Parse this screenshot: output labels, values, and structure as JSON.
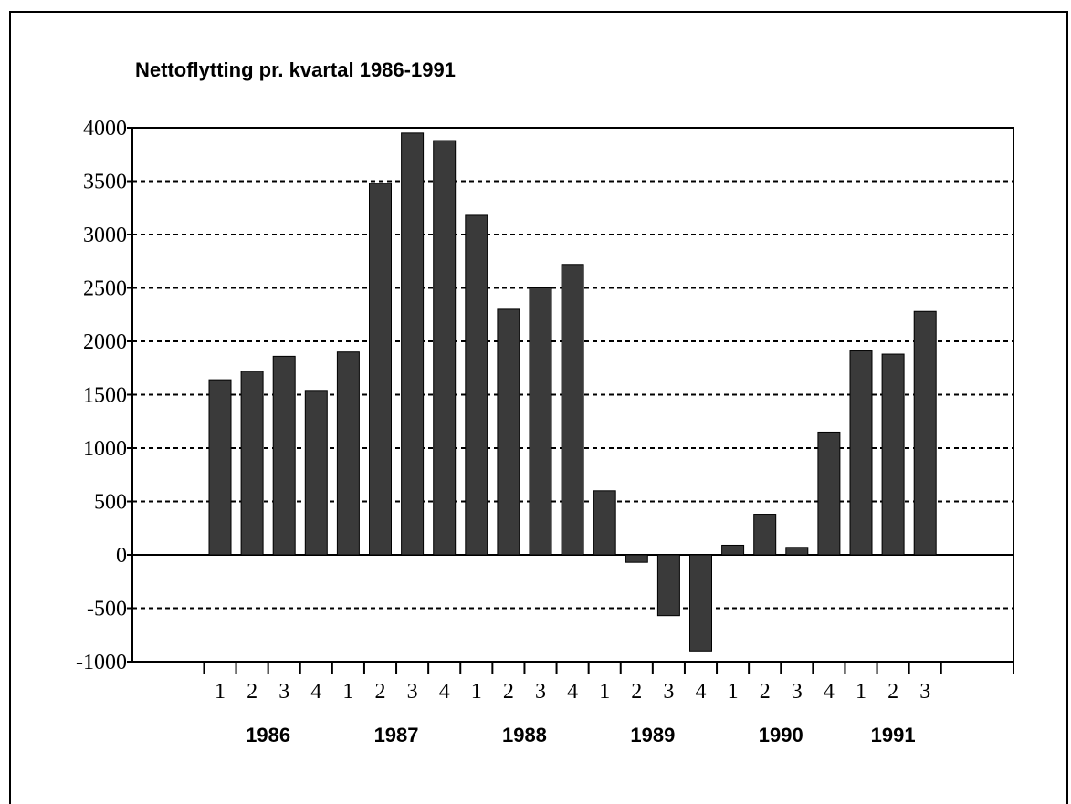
{
  "chart_data": {
    "type": "bar",
    "title": "Nettoflytting pr. kvartal 1986-1991",
    "categories": [
      "1",
      "2",
      "3",
      "4",
      "1",
      "2",
      "3",
      "4",
      "1",
      "2",
      "3",
      "4",
      "1",
      "2",
      "3",
      "4",
      "1",
      "2",
      "3",
      "4",
      "1",
      "2",
      "3"
    ],
    "group_labels": [
      "1986",
      "1987",
      "1988",
      "1989",
      "1990",
      "1991"
    ],
    "values": [
      1640,
      1720,
      1860,
      1540,
      1900,
      3480,
      3950,
      3880,
      3180,
      2300,
      2500,
      2720,
      600,
      -70,
      -570,
      -900,
      90,
      380,
      70,
      1150,
      1910,
      1880,
      2280
    ],
    "color": "#3a3a3a",
    "ylim": [
      -1000,
      4000
    ],
    "yticks": [
      {
        "value": -1000,
        "label": "-1000"
      },
      -500,
      0,
      500,
      1000,
      1500,
      2000,
      2500,
      3000,
      3500,
      4000
    ],
    "grid": true
  }
}
